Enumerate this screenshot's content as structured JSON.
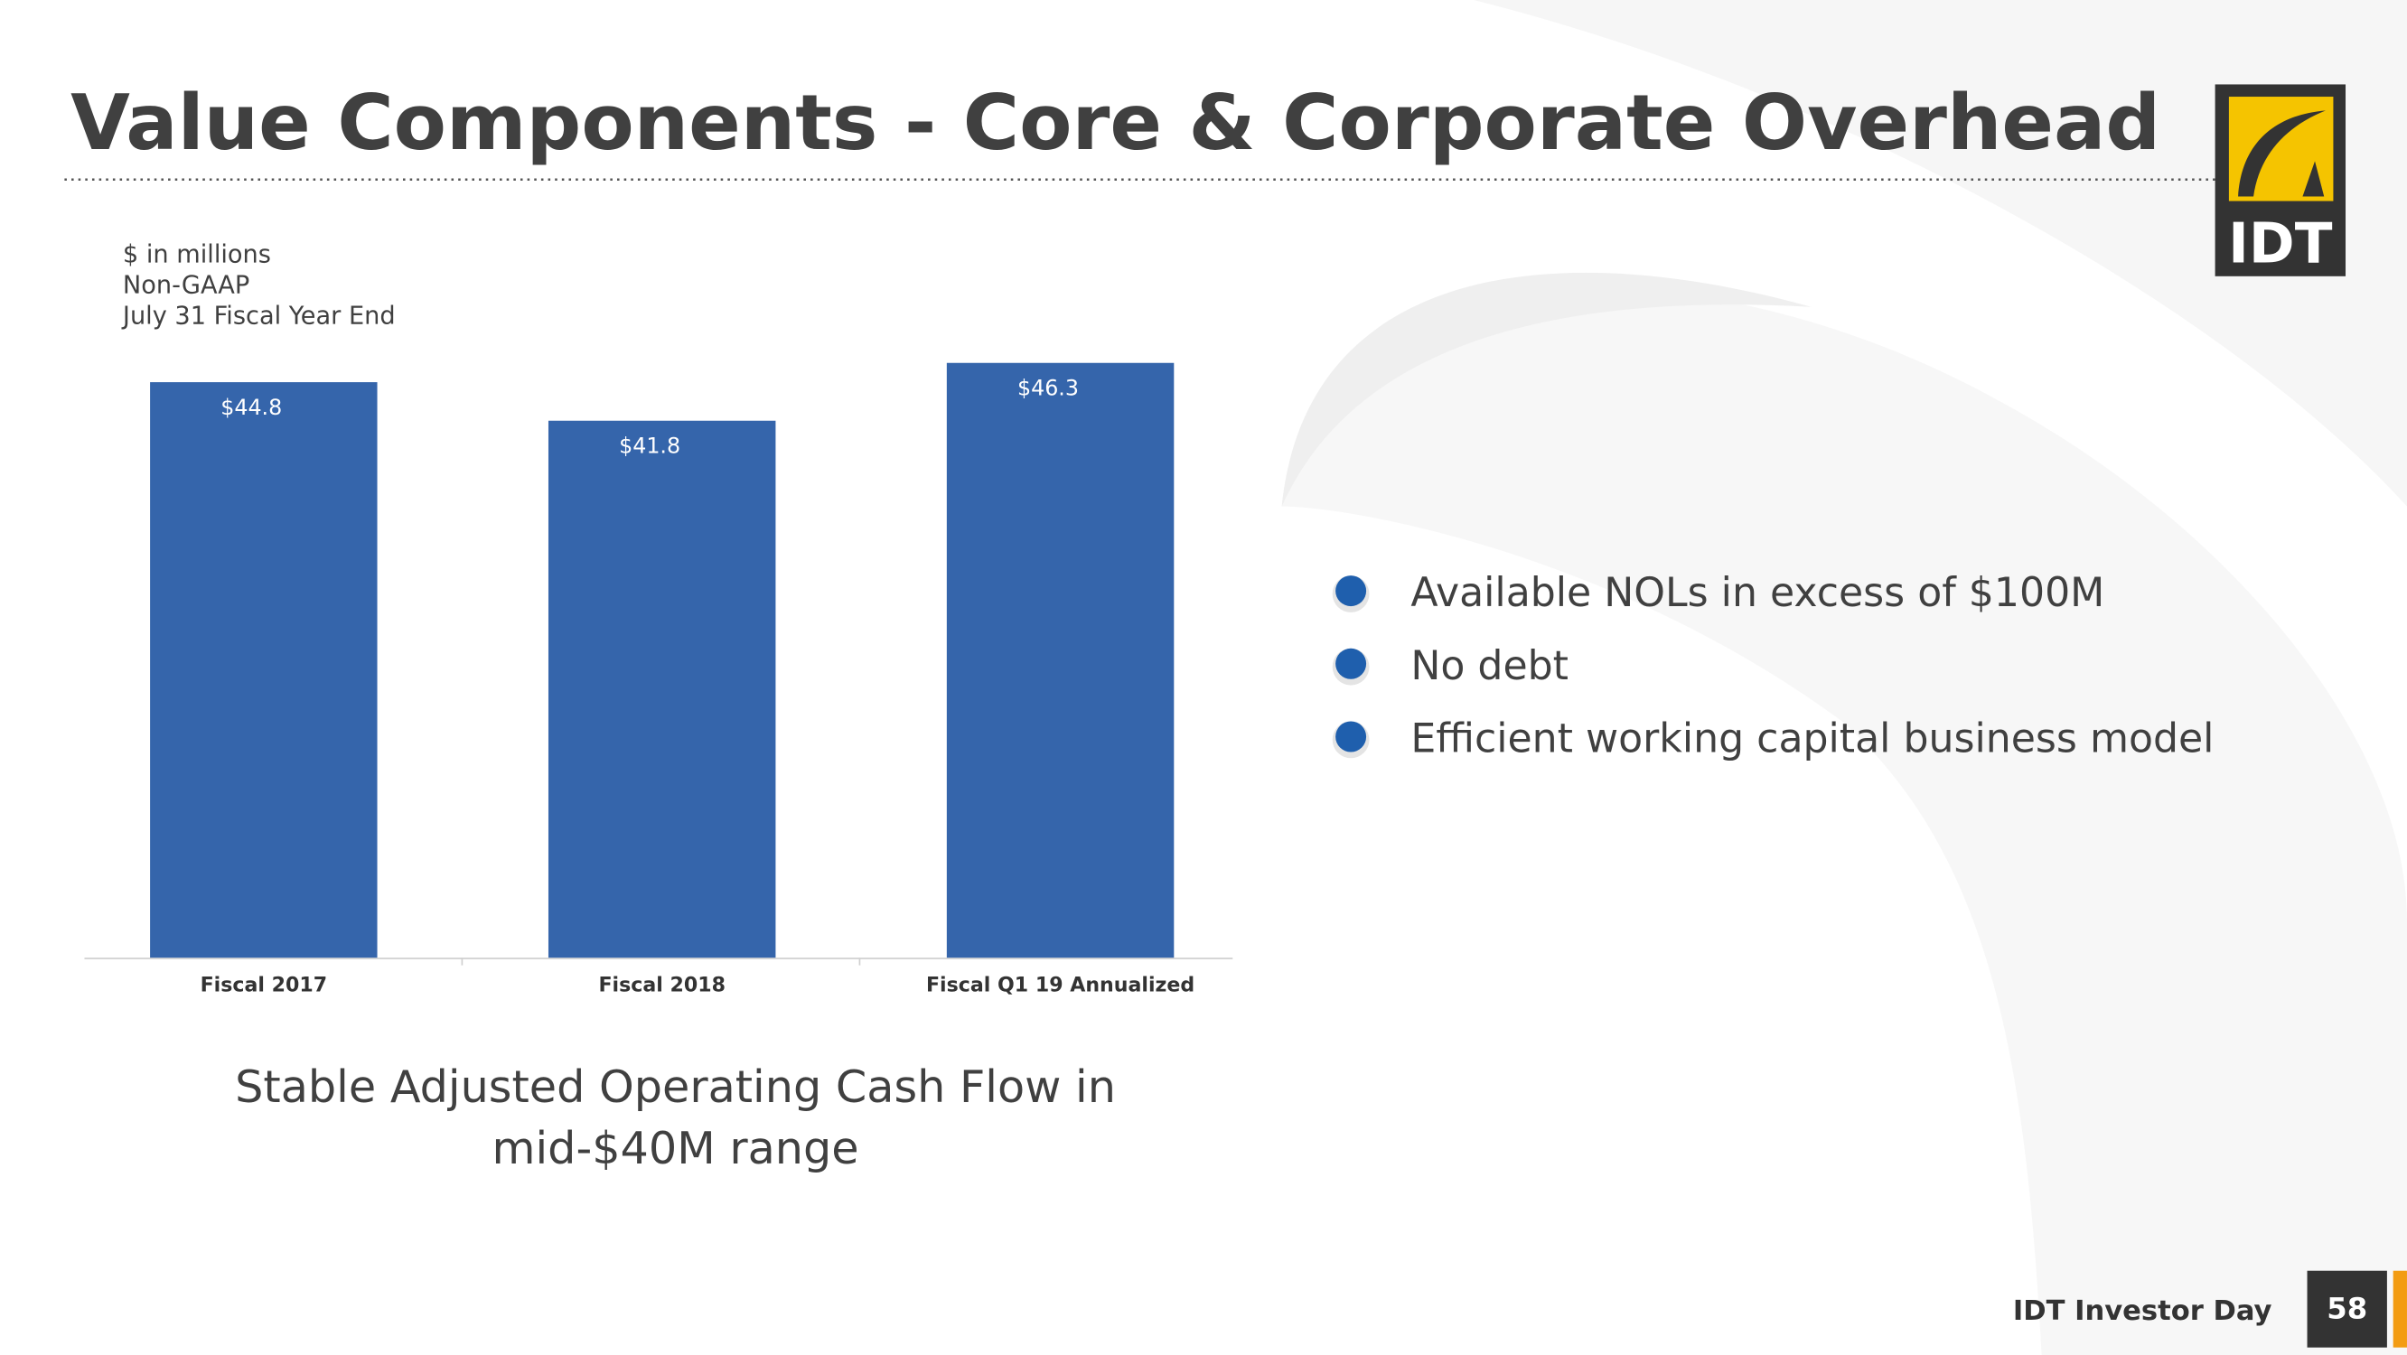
{
  "title": "Value Components - Core & Corporate Overhead",
  "notes": [
    "$ in millions",
    "Non-GAAP",
    "July 31 Fiscal Year End"
  ],
  "chart_data": {
    "type": "bar",
    "categories": [
      "Fiscal 2017",
      "Fiscal 2018",
      "Fiscal Q1 19 Annualized"
    ],
    "values": [
      44.8,
      41.8,
      46.3
    ],
    "value_labels": [
      "$44.8",
      "$41.8",
      "$46.3"
    ],
    "color": "#3565ab"
  },
  "caption": [
    "Stable Adjusted Operating Cash Flow in",
    "mid-$40M range"
  ],
  "bullets": [
    "Available NOLs in excess of $100M",
    "No debt",
    "Efficient working capital business model"
  ],
  "logo": "IDT",
  "footer": {
    "label": "IDT Investor Day",
    "page": "58"
  }
}
